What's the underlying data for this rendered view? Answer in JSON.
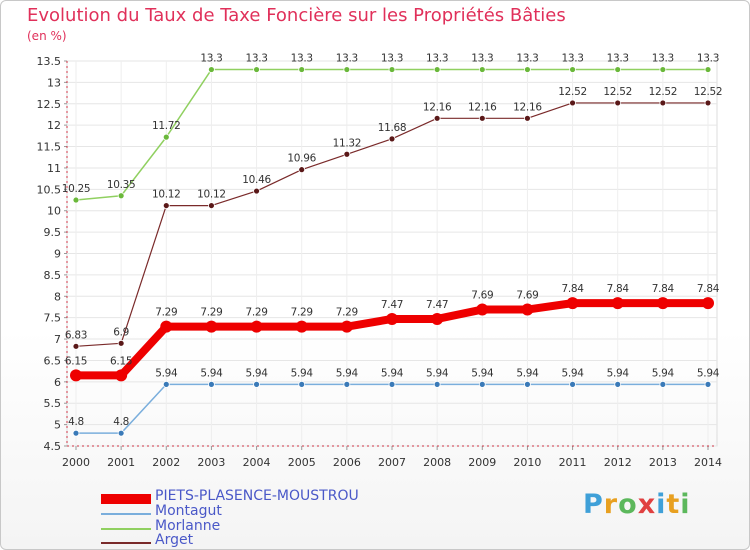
{
  "title": "Evolution du Taux de Taxe Foncière sur les Propriétés Bâties",
  "unit": "(en %)",
  "logo": {
    "text": "Proxiti",
    "letters": [
      "P",
      "r",
      "o",
      "x",
      "i",
      "t",
      "i"
    ],
    "colors": [
      "#3fa0d8",
      "#e8a020",
      "#5cb85c",
      "#e04040",
      "#3fa0d8",
      "#e8a020",
      "#5cb85c"
    ]
  },
  "chart_data": {
    "type": "line",
    "title": "Evolution du Taux de Taxe Foncière sur les Propriétés Bâties",
    "ylabel": "(en %)",
    "xlabel": "",
    "ylim": [
      4.5,
      13.5
    ],
    "yticks": [
      "4.5",
      "5",
      "5.5",
      "6",
      "6.5",
      "7",
      "7.5",
      "8",
      "8.5",
      "9",
      "9.5",
      "10",
      "10.5",
      "11",
      "11.5",
      "12",
      "12.5",
      "13",
      "13.5"
    ],
    "x": [
      "2000",
      "2001",
      "2002",
      "2003",
      "2004",
      "2005",
      "2006",
      "2007",
      "2008",
      "2009",
      "2010",
      "2011",
      "2012",
      "2013",
      "2014"
    ],
    "series": [
      {
        "name": "Arget",
        "color": "#7a2a2a",
        "marker": "#5a1818",
        "width": 1.2,
        "markerRadius": 3,
        "values": [
          6.83,
          6.9,
          10.12,
          10.12,
          10.46,
          10.96,
          11.32,
          11.68,
          12.16,
          12.16,
          12.16,
          12.52,
          12.52,
          12.52,
          12.52
        ],
        "labels": [
          "6.83",
          "6.9",
          "10.12",
          "10.12",
          "10.46",
          "10.96",
          "11.32",
          "11.68",
          "12.16",
          "12.16",
          "12.16",
          "12.52",
          "12.52",
          "12.52",
          "12.52"
        ]
      },
      {
        "name": "Morlanne",
        "color": "#90d060",
        "marker": "#6ab83a",
        "width": 1.5,
        "markerRadius": 3,
        "values": [
          10.25,
          10.35,
          11.72,
          13.3,
          13.3,
          13.3,
          13.3,
          13.3,
          13.3,
          13.3,
          13.3,
          13.3,
          13.3,
          13.3,
          13.3
        ],
        "labels": [
          "10.25",
          "10.35",
          "11.72",
          "13.3",
          "13.3",
          "13.3",
          "13.3",
          "13.3",
          "13.3",
          "13.3",
          "13.3",
          "13.3",
          "13.3",
          "13.3",
          "13.3"
        ]
      },
      {
        "name": "Montagut",
        "color": "#7aaedc",
        "marker": "#3a7ab8",
        "width": 1.5,
        "markerRadius": 3,
        "values": [
          4.8,
          4.8,
          5.94,
          5.94,
          5.94,
          5.94,
          5.94,
          5.94,
          5.94,
          5.94,
          5.94,
          5.94,
          5.94,
          5.94,
          5.94
        ],
        "labels": [
          "4.8",
          "4.8",
          "5.94",
          "5.94",
          "5.94",
          "5.94",
          "5.94",
          "5.94",
          "5.94",
          "5.94",
          "5.94",
          "5.94",
          "5.94",
          "5.94",
          "5.94"
        ]
      },
      {
        "name": "PIETS-PLASENCE-MOUSTROU",
        "color": "#ee0000",
        "marker": "#ee0000",
        "width": 8,
        "markerRadius": 6,
        "values": [
          6.15,
          6.15,
          7.29,
          7.29,
          7.29,
          7.29,
          7.29,
          7.47,
          7.47,
          7.69,
          7.69,
          7.84,
          7.84,
          7.84,
          7.84
        ],
        "labels": [
          "6.15",
          "6.15",
          "7.29",
          "7.29",
          "7.29",
          "7.29",
          "7.29",
          "7.47",
          "7.47",
          "7.69",
          "7.69",
          "7.84",
          "7.84",
          "7.84",
          "7.84"
        ]
      }
    ],
    "legend": {
      "placement": "bottom-left",
      "order": [
        "PIETS-PLASENCE-MOUSTROU",
        "Montagut",
        "Morlanne",
        "Arget"
      ]
    }
  }
}
